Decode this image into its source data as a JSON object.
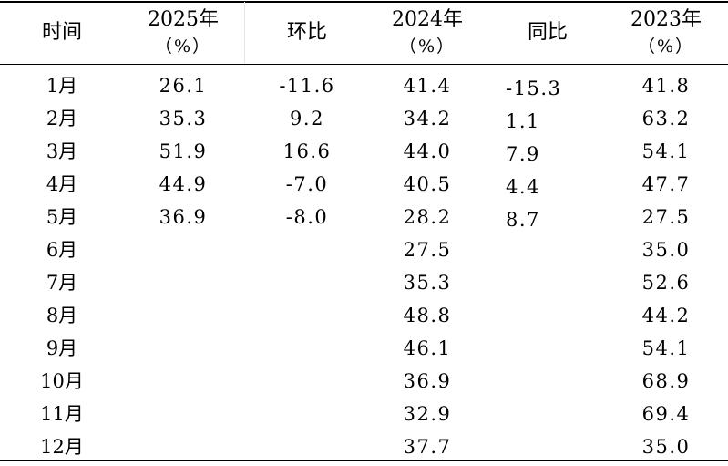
{
  "table": {
    "headers": {
      "month": "时间",
      "y2025": "2025年",
      "y2025_unit": "（%）",
      "mom": "环比",
      "y2024": "2024年",
      "y2024_unit": "（%）",
      "yoy": "同比",
      "y2023": "2023年",
      "y2023_unit": "（%）"
    },
    "rows": [
      {
        "month": "1月",
        "y2025": "26.1",
        "mom": "-11.6",
        "y2024": "41.4",
        "yoy": "-15.3",
        "y2023": "41.8"
      },
      {
        "month": "2月",
        "y2025": "35.3",
        "mom": "9.2",
        "y2024": "34.2",
        "yoy": "1.1",
        "y2023": "63.2"
      },
      {
        "month": "3月",
        "y2025": "51.9",
        "mom": "16.6",
        "y2024": "44.0",
        "yoy": "7.9",
        "y2023": "54.1"
      },
      {
        "month": "4月",
        "y2025": "44.9",
        "mom": "-7.0",
        "y2024": "40.5",
        "yoy": "4.4",
        "y2023": "47.7"
      },
      {
        "month": "5月",
        "y2025": "36.9",
        "mom": "-8.0",
        "y2024": "28.2",
        "yoy": "8.7",
        "y2023": "27.5"
      },
      {
        "month": "6月",
        "y2025": "",
        "mom": "",
        "y2024": "27.5",
        "yoy": "",
        "y2023": "35.0"
      },
      {
        "month": "7月",
        "y2025": "",
        "mom": "",
        "y2024": "35.3",
        "yoy": "",
        "y2023": "52.6"
      },
      {
        "month": "8月",
        "y2025": "",
        "mom": "",
        "y2024": "48.8",
        "yoy": "",
        "y2023": "44.2"
      },
      {
        "month": "9月",
        "y2025": "",
        "mom": "",
        "y2024": "46.1",
        "yoy": "",
        "y2023": "54.1"
      },
      {
        "month": "10月",
        "y2025": "",
        "mom": "",
        "y2024": "36.9",
        "yoy": "",
        "y2023": "68.9"
      },
      {
        "month": "11月",
        "y2025": "",
        "mom": "",
        "y2024": "32.9",
        "yoy": "",
        "y2023": "69.4"
      },
      {
        "month": "12月",
        "y2025": "",
        "mom": "",
        "y2024": "37.7",
        "yoy": "",
        "y2023": "35.0"
      }
    ]
  }
}
